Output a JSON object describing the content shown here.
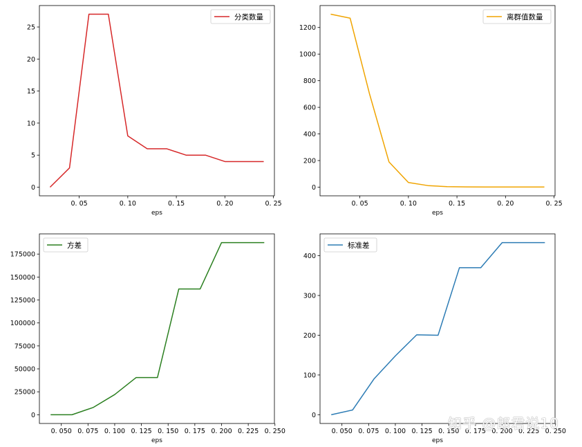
{
  "watermark": "知乎 @郎君说10",
  "chart_data": [
    {
      "type": "line",
      "series": [
        {
          "name": "分类数量",
          "color": "#d62728",
          "x": [
            0.02,
            0.04,
            0.06,
            0.08,
            0.1,
            0.12,
            0.14,
            0.16,
            0.18,
            0.2,
            0.22,
            0.24
          ],
          "y": [
            0,
            3,
            27,
            27,
            8,
            6,
            6,
            5,
            5,
            4,
            4,
            4
          ]
        }
      ],
      "xlabel": "eps",
      "xticks": [
        "0. 05",
        "0. 10",
        "0. 15",
        "0. 20",
        "0. 25"
      ],
      "xtick_values": [
        0.05,
        0.1,
        0.15,
        0.2,
        0.25
      ],
      "yticks": [
        "0",
        "5",
        "10",
        "15",
        "20",
        "25"
      ],
      "ytick_values": [
        0,
        5,
        10,
        15,
        20,
        25
      ],
      "xlim": [
        0.009,
        0.251
      ],
      "ylim": [
        -1.35,
        28.35
      ],
      "legend": "top-right",
      "grid": false
    },
    {
      "type": "line",
      "series": [
        {
          "name": "离群值数量",
          "color": "#f0a400",
          "x": [
            0.02,
            0.04,
            0.06,
            0.08,
            0.1,
            0.12,
            0.14,
            0.16,
            0.18,
            0.2,
            0.22,
            0.24
          ],
          "y": [
            1300,
            1270,
            700,
            190,
            35,
            12,
            4,
            2,
            1,
            1,
            1,
            1
          ]
        }
      ],
      "xlabel": "eps",
      "xticks": [
        "0. 05",
        "0. 10",
        "0. 15",
        "0. 20",
        "0. 25"
      ],
      "xtick_values": [
        0.05,
        0.1,
        0.15,
        0.2,
        0.25
      ],
      "yticks": [
        "0",
        "200",
        "400",
        "600",
        "800",
        "1000",
        "1200"
      ],
      "ytick_values": [
        0,
        200,
        400,
        600,
        800,
        1000,
        1200
      ],
      "xlim": [
        0.009,
        0.251
      ],
      "ylim": [
        -65,
        1365
      ],
      "legend": "top-right",
      "grid": false
    },
    {
      "type": "line",
      "series": [
        {
          "name": "方差",
          "color": "#2a7f1f",
          "x": [
            0.04,
            0.06,
            0.08,
            0.1,
            0.12,
            0.14,
            0.16,
            0.18,
            0.2,
            0.22,
            0.24
          ],
          "y": [
            0,
            0,
            8000,
            22000,
            40500,
            40500,
            137000,
            137000,
            187500,
            187500,
            187500
          ]
        }
      ],
      "xlabel": "eps",
      "xticks": [
        "0. 050",
        "0. 075",
        "0. 100",
        "0. 125",
        "0. 150",
        "0. 175",
        "0. 200",
        "0. 225",
        "0. 250"
      ],
      "xtick_values": [
        0.05,
        0.075,
        0.1,
        0.125,
        0.15,
        0.175,
        0.2,
        0.225,
        0.25
      ],
      "yticks": [
        "0",
        "25000",
        "50000",
        "75000",
        "100000",
        "125000",
        "150000",
        "175000"
      ],
      "ytick_values": [
        0,
        25000,
        50000,
        75000,
        100000,
        125000,
        150000,
        175000
      ],
      "xlim": [
        0.0295,
        0.2495
      ],
      "ylim": [
        -9500,
        197000
      ],
      "legend": "top-left",
      "grid": false
    },
    {
      "type": "line",
      "series": [
        {
          "name": "标准差",
          "color": "#2b7bb4",
          "x": [
            0.04,
            0.06,
            0.08,
            0.1,
            0.12,
            0.14,
            0.16,
            0.18,
            0.2,
            0.22,
            0.24
          ],
          "y": [
            0,
            12,
            90,
            148,
            201,
            200,
            370,
            370,
            433,
            433,
            433
          ]
        }
      ],
      "xlabel": "eps",
      "xticks": [
        "0. 050",
        "0. 075",
        "0. 100",
        "0. 125",
        "0. 150",
        "0. 175",
        "0. 200",
        "0. 225",
        "0. 250"
      ],
      "xtick_values": [
        0.05,
        0.075,
        0.1,
        0.125,
        0.15,
        0.175,
        0.2,
        0.225,
        0.25
      ],
      "yticks": [
        "0",
        "100",
        "200",
        "300",
        "400"
      ],
      "ytick_values": [
        0,
        100,
        200,
        300,
        400
      ],
      "xlim": [
        0.0295,
        0.2495
      ],
      "ylim": [
        -22,
        455
      ],
      "legend": "top-left",
      "grid": false
    }
  ]
}
